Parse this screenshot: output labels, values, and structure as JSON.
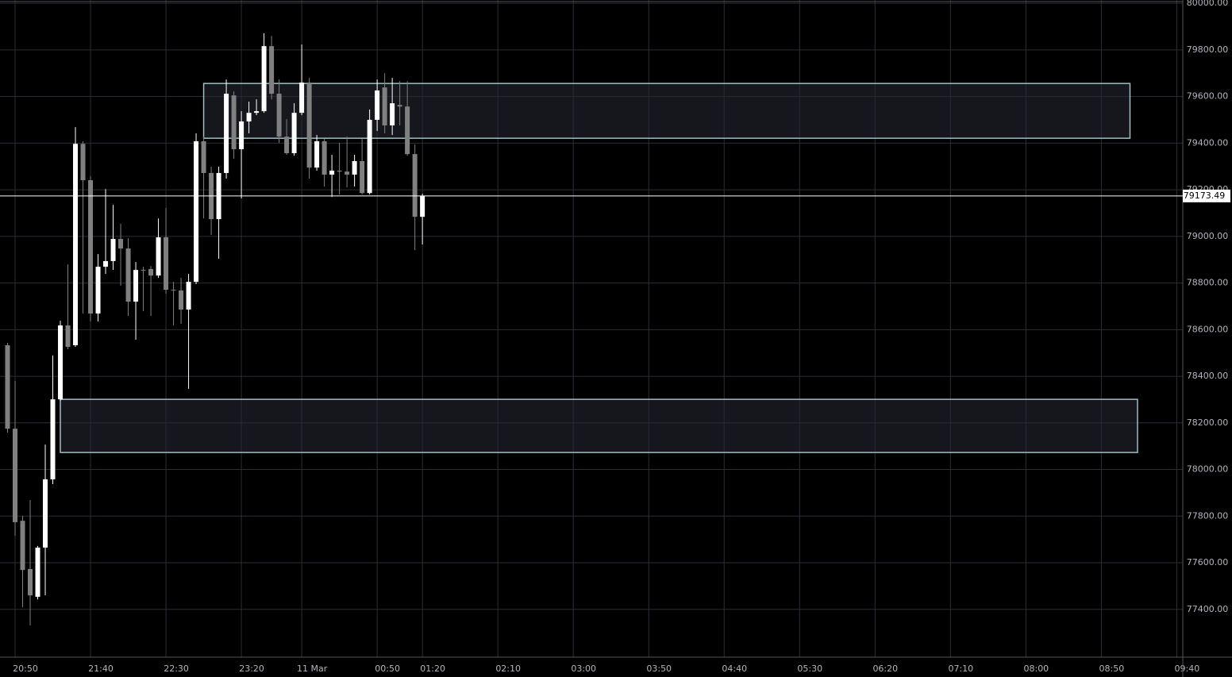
{
  "chart_data": {
    "type": "candlestick",
    "x": [
      "20:45",
      "20:50",
      "20:55",
      "21:00",
      "21:05",
      "21:10",
      "21:15",
      "21:20",
      "21:25",
      "21:30",
      "21:35",
      "21:40",
      "21:45",
      "21:50",
      "21:55",
      "22:00",
      "22:05",
      "22:10",
      "22:15",
      "22:20",
      "22:25",
      "22:30",
      "22:35",
      "22:40",
      "22:45",
      "22:50",
      "22:55",
      "23:00",
      "23:05",
      "23:10",
      "23:15",
      "23:20",
      "23:25",
      "23:30",
      "23:35",
      "23:40",
      "23:45",
      "23:50",
      "23:55",
      "00:00",
      "00:05",
      "00:10",
      "00:15",
      "00:20",
      "00:25",
      "00:30",
      "00:35",
      "00:40",
      "00:45",
      "00:50",
      "00:55",
      "01:00",
      "01:05",
      "01:10",
      "01:15",
      "01:20"
    ],
    "open": [
      78533,
      78175,
      77780,
      77573,
      77454,
      77665,
      77958,
      78301,
      78618,
      78533,
      79397,
      79241,
      78669,
      78870,
      78894,
      78989,
      78948,
      78720,
      78856,
      78860,
      78832,
      78996,
      78771,
      78768,
      78686,
      78805,
      79408,
      79272,
      79074,
      79272,
      79605,
      79374,
      79493,
      79530,
      79537,
      79816,
      79612,
      79428,
      79357,
      79530,
      79660,
      79295,
      79408,
      79265,
      79282,
      79278,
      79265,
      79323,
      79186,
      79500,
      79639,
      79476,
      79564,
      79557,
      79353,
      79084
    ],
    "high": [
      78543,
      78380,
      77801,
      77869,
      77672,
      78107,
      78489,
      78638,
      78880,
      79469,
      79408,
      79258,
      78924,
      79203,
      79135,
      79054,
      78992,
      78890,
      78870,
      78873,
      79077,
      79122,
      78805,
      78822,
      78839,
      79442,
      79428,
      79299,
      79299,
      79673,
      79622,
      79537,
      79578,
      79588,
      79871,
      79860,
      79673,
      79503,
      79571,
      79823,
      79680,
      79435,
      79418,
      79350,
      79401,
      79428,
      79350,
      79418,
      79544,
      79673,
      79700,
      79680,
      79666,
      79666,
      79394,
      79183
    ],
    "low": [
      78158,
      77716,
      77409,
      77331,
      77443,
      77460,
      77937,
      78295,
      78516,
      78526,
      78669,
      78635,
      78635,
      78839,
      78856,
      78788,
      78659,
      78557,
      78679,
      78659,
      78822,
      78754,
      78618,
      78625,
      78346,
      78795,
      79077,
      79006,
      78904,
      79248,
      79333,
      79163,
      79442,
      79520,
      79530,
      79588,
      79401,
      79350,
      79346,
      79520,
      79248,
      79282,
      79214,
      79169,
      79180,
      79210,
      79214,
      79180,
      79180,
      79452,
      79442,
      79435,
      79476,
      79346,
      78941,
      78965
    ],
    "close": [
      78175,
      77774,
      77569,
      77460,
      77665,
      77958,
      78301,
      78618,
      78526,
      79397,
      79241,
      78669,
      78870,
      78894,
      78989,
      78948,
      78720,
      78856,
      78853,
      78832,
      78996,
      78771,
      78768,
      78686,
      78805,
      79408,
      79272,
      79074,
      79272,
      79612,
      79374,
      79493,
      79530,
      79537,
      79816,
      79612,
      79428,
      79357,
      79530,
      79660,
      79295,
      79408,
      79265,
      79282,
      79278,
      79265,
      79323,
      79186,
      79500,
      79626,
      79476,
      79571,
      79557,
      79353,
      79084,
      79173.49
    ],
    "up_color": "#ffffff",
    "down_color": "#808080",
    "last_price": 79173.49,
    "zones": [
      {
        "top": 79656,
        "bottom": 79421,
        "start": "22:55",
        "end": "09:09"
      },
      {
        "top": 78301,
        "bottom": 78073,
        "start": "21:20",
        "end": "09:14"
      }
    ],
    "xlim": [
      "20:40",
      "09:44"
    ],
    "xticks": [
      "20:50",
      "21:40",
      "22:30",
      "23:20",
      {
        "value": "00:00",
        "label": "11 Mar"
      },
      "00:50",
      "01:20",
      "02:10",
      "03:00",
      "03:50",
      "04:40",
      "05:30",
      "06:20",
      "07:10",
      "08:00",
      "08:50",
      "09:40"
    ],
    "ylim": [
      77195,
      80014
    ],
    "yticks": [
      {
        "value": 77400,
        "label": "77400.00"
      },
      {
        "value": 77600,
        "label": "77600.00"
      },
      {
        "value": 77800,
        "label": "77800.00"
      },
      {
        "value": 78000,
        "label": "78000.00"
      },
      {
        "value": 78200,
        "label": "78200.00"
      },
      {
        "value": 78400,
        "label": "78400.00"
      },
      {
        "value": 78600,
        "label": "78600.00"
      },
      {
        "value": 78800,
        "label": "78800.00"
      },
      {
        "value": 79000,
        "label": "79000.00"
      },
      {
        "value": 79200,
        "label": "79200.00"
      },
      {
        "value": 79400,
        "label": "79400.00"
      },
      {
        "value": 79600,
        "label": "79600.00"
      },
      {
        "value": 79800,
        "label": "79800.00"
      },
      {
        "value": 80000,
        "label": "80000.00"
      }
    ],
    "grid": true
  }
}
